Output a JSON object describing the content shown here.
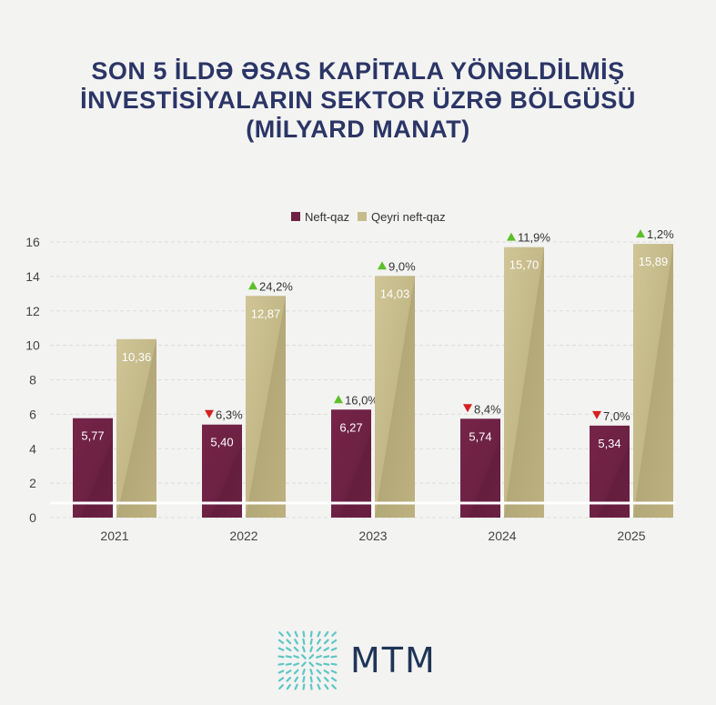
{
  "title_lines": [
    "SON 5 İLDƏ ƏSAS KAPİTALA YÖNƏLDİLMİŞ",
    "İNVESTİSİYALARIN SEKTOR ÜZRƏ BÖLGÜSÜ",
    "(MİLYARD MANAT)"
  ],
  "logo_text": "MTM",
  "colors": {
    "neft": "#6e2244",
    "qeyri": "#c6bb8a",
    "up": "#5cbf2a",
    "down": "#d42020",
    "title": "#2b3566"
  },
  "chart_data": {
    "type": "bar",
    "title": "SON 5 İLDƏ ƏSAS KAPİTALA YÖNƏLDİLMİŞ İNVESTİSİYALARIN SEKTOR ÜZRƏ BÖLGÜSÜ (MİLYARD MANAT)",
    "categories": [
      "2021",
      "2022",
      "2023",
      "2024",
      "2025"
    ],
    "series": [
      {
        "name": "Neft-qaz",
        "values": [
          5.77,
          5.4,
          6.27,
          5.74,
          5.34
        ],
        "labels": [
          "5,77",
          "5,40",
          "6,27",
          "5,74",
          "5,34"
        ],
        "changes": [
          null,
          {
            "dir": "down",
            "text": "6,3%"
          },
          {
            "dir": "up",
            "text": "16,0%"
          },
          {
            "dir": "down",
            "text": "8,4%"
          },
          {
            "dir": "down",
            "text": "7,0%"
          }
        ]
      },
      {
        "name": "Qeyri neft-qaz",
        "values": [
          10.36,
          12.87,
          14.03,
          15.7,
          15.89
        ],
        "labels": [
          "10,36",
          "12,87",
          "14,03",
          "15,70",
          "15,89"
        ],
        "changes": [
          null,
          {
            "dir": "up",
            "text": "24,2%"
          },
          {
            "dir": "up",
            "text": "9,0%"
          },
          {
            "dir": "up",
            "text": "11,9%"
          },
          {
            "dir": "up",
            "text": "1,2%"
          }
        ]
      }
    ],
    "yticks": [
      "0",
      "2",
      "4",
      "6",
      "8",
      "10",
      "12",
      "14",
      "16"
    ],
    "ylim": [
      0,
      16
    ],
    "xlabel": "",
    "ylabel": "",
    "legend": "top-center",
    "grid": true
  }
}
